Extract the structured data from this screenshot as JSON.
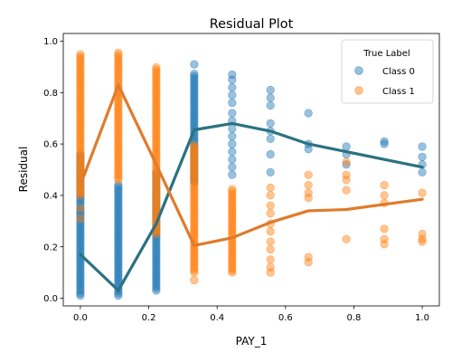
{
  "chart_data": {
    "type": "scatter",
    "title": "Residual Plot",
    "xlabel": "PAY_1",
    "ylabel": "Residual",
    "xlim": [
      -0.05,
      1.05
    ],
    "ylim": [
      -0.03,
      1.03
    ],
    "xticks": [
      "0.0",
      "0.2",
      "0.4",
      "0.6",
      "0.8",
      "1.0"
    ],
    "yticks": [
      "0.0",
      "0.2",
      "0.4",
      "0.6",
      "0.8",
      "1.0"
    ],
    "grid": false,
    "legend": {
      "title": "True Label",
      "placement": "top-right",
      "entries": [
        "Class 0",
        "Class 1"
      ]
    },
    "series": [
      {
        "name": "Class 0",
        "color": "#1f77b4",
        "trend_color": "#2b7282",
        "columns": [
          {
            "x": 0.0,
            "ymin": 0.01,
            "ymax": 0.56
          },
          {
            "x": 0.111,
            "ymin": 0.01,
            "ymax": 0.45
          },
          {
            "x": 0.222,
            "ymin": 0.03,
            "ymax": 0.49
          },
          {
            "x": 0.333,
            "ymin": 0.45,
            "ymax": 0.88
          }
        ],
        "points": [
          {
            "x": 0.333,
            "y": 0.91
          },
          {
            "x": 0.444,
            "y": 0.87
          },
          {
            "x": 0.444,
            "y": 0.85
          },
          {
            "x": 0.444,
            "y": 0.82
          },
          {
            "x": 0.444,
            "y": 0.79
          },
          {
            "x": 0.444,
            "y": 0.76
          },
          {
            "x": 0.444,
            "y": 0.72
          },
          {
            "x": 0.444,
            "y": 0.69
          },
          {
            "x": 0.444,
            "y": 0.66
          },
          {
            "x": 0.444,
            "y": 0.63
          },
          {
            "x": 0.444,
            "y": 0.6
          },
          {
            "x": 0.444,
            "y": 0.57
          },
          {
            "x": 0.444,
            "y": 0.54
          },
          {
            "x": 0.444,
            "y": 0.51
          },
          {
            "x": 0.444,
            "y": 0.48
          },
          {
            "x": 0.556,
            "y": 0.81
          },
          {
            "x": 0.556,
            "y": 0.78
          },
          {
            "x": 0.556,
            "y": 0.75
          },
          {
            "x": 0.556,
            "y": 0.68
          },
          {
            "x": 0.556,
            "y": 0.65
          },
          {
            "x": 0.556,
            "y": 0.62
          },
          {
            "x": 0.556,
            "y": 0.56
          },
          {
            "x": 0.556,
            "y": 0.49
          },
          {
            "x": 0.667,
            "y": 0.72
          },
          {
            "x": 0.667,
            "y": 0.6
          },
          {
            "x": 0.667,
            "y": 0.58
          },
          {
            "x": 0.778,
            "y": 0.59
          },
          {
            "x": 0.778,
            "y": 0.56
          },
          {
            "x": 0.778,
            "y": 0.52
          },
          {
            "x": 0.889,
            "y": 0.61
          },
          {
            "x": 0.889,
            "y": 0.6
          },
          {
            "x": 1.0,
            "y": 0.59
          },
          {
            "x": 1.0,
            "y": 0.55
          },
          {
            "x": 1.0,
            "y": 0.52
          },
          {
            "x": 1.0,
            "y": 0.49
          }
        ],
        "trend": [
          {
            "x": 0.0,
            "y": 0.17
          },
          {
            "x": 0.111,
            "y": 0.03
          },
          {
            "x": 0.222,
            "y": 0.29
          },
          {
            "x": 0.333,
            "y": 0.655
          },
          {
            "x": 0.444,
            "y": 0.68
          },
          {
            "x": 0.556,
            "y": 0.65
          },
          {
            "x": 0.667,
            "y": 0.6
          },
          {
            "x": 0.778,
            "y": 0.57
          },
          {
            "x": 0.889,
            "y": 0.54
          },
          {
            "x": 1.0,
            "y": 0.51
          }
        ]
      },
      {
        "name": "Class 1",
        "color": "#ff7f0e",
        "trend_color": "#e07b2a",
        "columns": [
          {
            "x": 0.0,
            "ymin": 0.4,
            "ymax": 0.95
          },
          {
            "x": 0.111,
            "ymin": 0.46,
            "ymax": 0.96
          },
          {
            "x": 0.222,
            "ymin": 0.25,
            "ymax": 0.9
          },
          {
            "x": 0.333,
            "ymin": 0.1,
            "ymax": 0.6
          },
          {
            "x": 0.444,
            "ymin": 0.1,
            "ymax": 0.43
          }
        ],
        "points": [
          {
            "x": 0.0,
            "y": 0.31
          },
          {
            "x": 0.0,
            "y": 0.35
          },
          {
            "x": 0.333,
            "y": 0.07
          },
          {
            "x": 0.556,
            "y": 0.43
          },
          {
            "x": 0.556,
            "y": 0.4
          },
          {
            "x": 0.556,
            "y": 0.36
          },
          {
            "x": 0.556,
            "y": 0.33
          },
          {
            "x": 0.556,
            "y": 0.29
          },
          {
            "x": 0.556,
            "y": 0.26
          },
          {
            "x": 0.556,
            "y": 0.22
          },
          {
            "x": 0.556,
            "y": 0.19
          },
          {
            "x": 0.556,
            "y": 0.15
          },
          {
            "x": 0.556,
            "y": 0.12
          },
          {
            "x": 0.556,
            "y": 0.1
          },
          {
            "x": 0.667,
            "y": 0.48
          },
          {
            "x": 0.667,
            "y": 0.44
          },
          {
            "x": 0.667,
            "y": 0.41
          },
          {
            "x": 0.667,
            "y": 0.39
          },
          {
            "x": 0.667,
            "y": 0.16
          },
          {
            "x": 0.667,
            "y": 0.14
          },
          {
            "x": 0.778,
            "y": 0.53
          },
          {
            "x": 0.778,
            "y": 0.48
          },
          {
            "x": 0.778,
            "y": 0.46
          },
          {
            "x": 0.778,
            "y": 0.42
          },
          {
            "x": 0.778,
            "y": 0.23
          },
          {
            "x": 0.889,
            "y": 0.44
          },
          {
            "x": 0.889,
            "y": 0.4
          },
          {
            "x": 0.889,
            "y": 0.37
          },
          {
            "x": 0.889,
            "y": 0.27
          },
          {
            "x": 0.889,
            "y": 0.23
          },
          {
            "x": 0.889,
            "y": 0.21
          },
          {
            "x": 1.0,
            "y": 0.41
          },
          {
            "x": 1.0,
            "y": 0.25
          },
          {
            "x": 1.0,
            "y": 0.23
          },
          {
            "x": 1.0,
            "y": 0.22
          }
        ],
        "trend": [
          {
            "x": 0.0,
            "y": 0.44
          },
          {
            "x": 0.111,
            "y": 0.83
          },
          {
            "x": 0.222,
            "y": 0.52
          },
          {
            "x": 0.333,
            "y": 0.205
          },
          {
            "x": 0.444,
            "y": 0.235
          },
          {
            "x": 0.556,
            "y": 0.295
          },
          {
            "x": 0.667,
            "y": 0.34
          },
          {
            "x": 0.778,
            "y": 0.345
          },
          {
            "x": 0.889,
            "y": 0.365
          },
          {
            "x": 1.0,
            "y": 0.385
          }
        ]
      }
    ]
  }
}
